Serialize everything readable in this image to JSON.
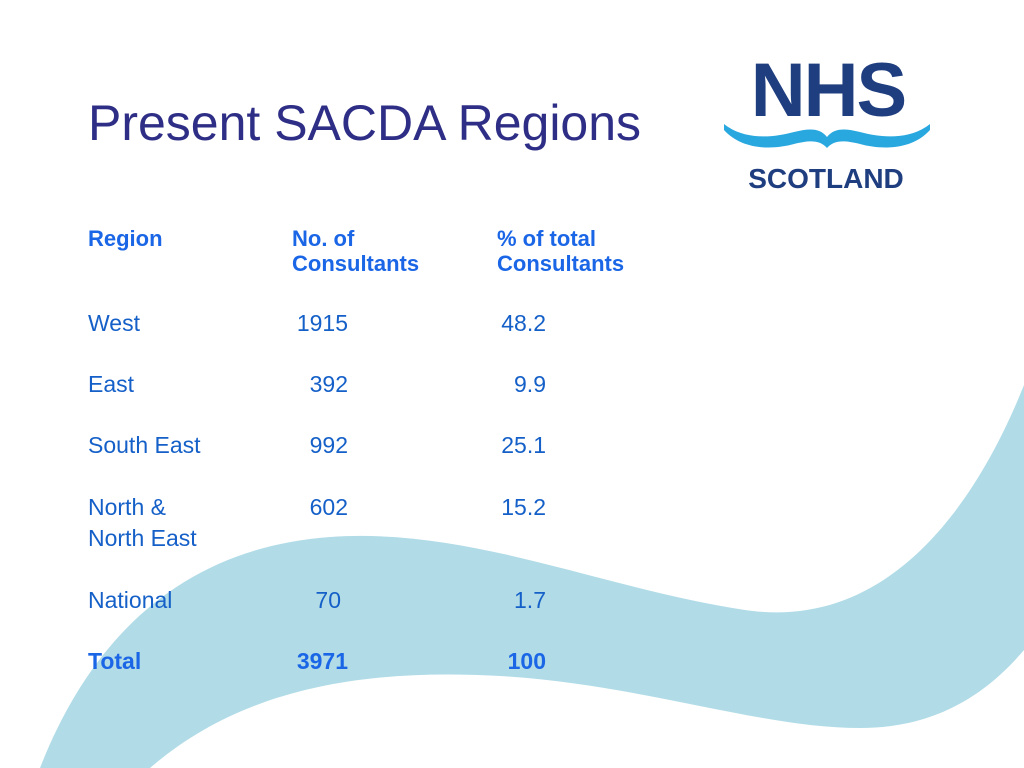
{
  "slide": {
    "title": "Present SACDA Regions"
  },
  "logo": {
    "word": "NHS",
    "subtitle": "SCOTLAND",
    "colors": {
      "navy": "#1f3e7f",
      "light_blue": "#29a8e0"
    }
  },
  "table": {
    "headers": {
      "region": "Region",
      "consultants_line1": "No. of",
      "consultants_line2": "Consultants",
      "percent_line1": "% of total",
      "percent_line2": "Consultants"
    },
    "rows": [
      {
        "region": "West",
        "region_line2": "",
        "consultants": "1915",
        "percent": "48.2"
      },
      {
        "region": "East",
        "region_line2": "",
        "consultants": "392",
        "percent": "9.9"
      },
      {
        "region": "South East",
        "region_line2": "",
        "consultants": "992",
        "percent": "25.1"
      },
      {
        "region": "North &",
        "region_line2": "North East",
        "consultants": "602",
        "percent": "15.2"
      },
      {
        "region": "National",
        "region_line2": "",
        "consultants": "70",
        "percent": "1.7"
      }
    ],
    "total": {
      "region": "Total",
      "consultants": "3971",
      "percent": "100"
    }
  },
  "colors": {
    "title": "#2e2e86",
    "text": "#1560c8",
    "header_text": "#1a66e6",
    "background_swoosh": "#b1dce7"
  }
}
